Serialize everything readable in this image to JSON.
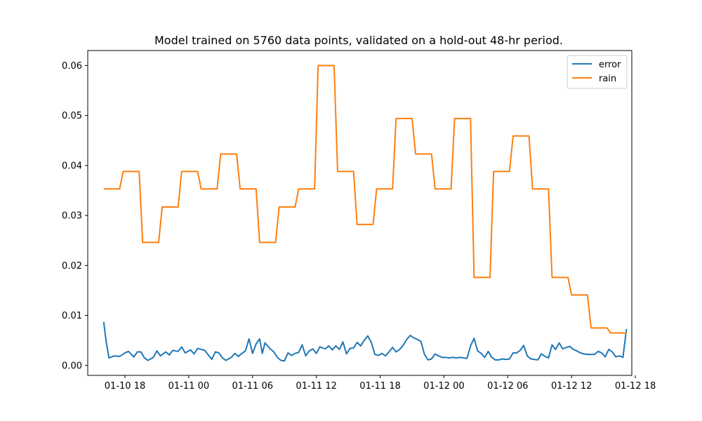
{
  "chart_data": {
    "type": "line",
    "title": "Model trained on 5760 data points, validated on a hold-out 48-hr period.",
    "xlabel": "",
    "ylabel": "",
    "xlim": [
      "2025-01-10 14:30",
      "2025-01-12 17:40"
    ],
    "ylim": [
      -0.002,
      0.063
    ],
    "x_ticks": [
      "01-10 18",
      "01-11 00",
      "01-11 06",
      "01-11 12",
      "01-11 18",
      "01-12 00",
      "01-12 06",
      "01-12 12",
      "01-12 18"
    ],
    "y_ticks": [
      "0.00",
      "0.01",
      "0.02",
      "0.03",
      "0.04",
      "0.05",
      "0.06"
    ],
    "grid": false,
    "legend_position": "top-right",
    "series": [
      {
        "name": "error",
        "color": "#1f77b4",
        "points": [
          [
            "01-10 16:00",
            0.0087
          ],
          [
            "01-10 16:15",
            0.0045
          ],
          [
            "01-10 16:30",
            0.0015
          ],
          [
            "01-10 17:00",
            0.0019
          ],
          [
            "01-10 17:30",
            0.0018
          ],
          [
            "01-10 18:00",
            0.0025
          ],
          [
            "01-10 18:20",
            0.0028
          ],
          [
            "01-10 18:50",
            0.0017
          ],
          [
            "01-10 19:10",
            0.0027
          ],
          [
            "01-10 19:30",
            0.0027
          ],
          [
            "01-10 19:50",
            0.0015
          ],
          [
            "01-10 20:10",
            0.001
          ],
          [
            "01-10 20:40",
            0.0016
          ],
          [
            "01-10 21:00",
            0.0029
          ],
          [
            "01-10 21:20",
            0.0019
          ],
          [
            "01-10 21:50",
            0.0027
          ],
          [
            "01-10 22:10",
            0.0021
          ],
          [
            "01-10 22:30",
            0.003
          ],
          [
            "01-10 23:00",
            0.0028
          ],
          [
            "01-10 23:20",
            0.0037
          ],
          [
            "01-10 23:40",
            0.0025
          ],
          [
            "01-11 00:10",
            0.0031
          ],
          [
            "01-11 00:30",
            0.0023
          ],
          [
            "01-11 00:50",
            0.0034
          ],
          [
            "01-11 01:10",
            0.0032
          ],
          [
            "01-11 01:30",
            0.003
          ],
          [
            "01-11 01:50",
            0.0021
          ],
          [
            "01-11 02:10",
            0.0012
          ],
          [
            "01-11 02:30",
            0.0027
          ],
          [
            "01-11 02:50",
            0.0025
          ],
          [
            "01-11 03:10",
            0.0015
          ],
          [
            "01-11 03:30",
            0.001
          ],
          [
            "01-11 04:00",
            0.0016
          ],
          [
            "01-11 04:20",
            0.0024
          ],
          [
            "01-11 04:40",
            0.0018
          ],
          [
            "01-11 05:00",
            0.0024
          ],
          [
            "01-11 05:20",
            0.0029
          ],
          [
            "01-11 05:40",
            0.0053
          ],
          [
            "01-11 06:00",
            0.0024
          ],
          [
            "01-11 06:20",
            0.0043
          ],
          [
            "01-11 06:40",
            0.0053
          ],
          [
            "01-11 06:55",
            0.0024
          ],
          [
            "01-11 07:10",
            0.0045
          ],
          [
            "01-11 07:40",
            0.0033
          ],
          [
            "01-11 08:00",
            0.0027
          ],
          [
            "01-11 08:20",
            0.0016
          ],
          [
            "01-11 08:40",
            0.001
          ],
          [
            "01-11 09:00",
            0.0009
          ],
          [
            "01-11 09:20",
            0.0025
          ],
          [
            "01-11 09:40",
            0.002
          ],
          [
            "01-11 10:00",
            0.0024
          ],
          [
            "01-11 10:20",
            0.0026
          ],
          [
            "01-11 10:40",
            0.0041
          ],
          [
            "01-11 11:00",
            0.0019
          ],
          [
            "01-11 11:20",
            0.0029
          ],
          [
            "01-11 11:40",
            0.0033
          ],
          [
            "01-11 12:00",
            0.0024
          ],
          [
            "01-11 12:20",
            0.0037
          ],
          [
            "01-11 12:50",
            0.0033
          ],
          [
            "01-11 13:10",
            0.0039
          ],
          [
            "01-11 13:30",
            0.0031
          ],
          [
            "01-11 13:50",
            0.0039
          ],
          [
            "01-11 14:10",
            0.0032
          ],
          [
            "01-11 14:30",
            0.0047
          ],
          [
            "01-11 14:50",
            0.0023
          ],
          [
            "01-11 15:10",
            0.0034
          ],
          [
            "01-11 15:30",
            0.0035
          ],
          [
            "01-11 15:50",
            0.0046
          ],
          [
            "01-11 16:10",
            0.0039
          ],
          [
            "01-11 16:30",
            0.005
          ],
          [
            "01-11 16:50",
            0.0059
          ],
          [
            "01-11 17:10",
            0.0046
          ],
          [
            "01-11 17:30",
            0.0022
          ],
          [
            "01-11 17:50",
            0.002
          ],
          [
            "01-11 18:10",
            0.0024
          ],
          [
            "01-11 18:30",
            0.0019
          ],
          [
            "01-11 18:50",
            0.0027
          ],
          [
            "01-11 19:10",
            0.0036
          ],
          [
            "01-11 19:30",
            0.0027
          ],
          [
            "01-11 19:50",
            0.0032
          ],
          [
            "01-11 20:10",
            0.004
          ],
          [
            "01-11 20:30",
            0.0052
          ],
          [
            "01-11 20:50",
            0.006
          ],
          [
            "01-11 21:10",
            0.0055
          ],
          [
            "01-11 21:30",
            0.0052
          ],
          [
            "01-11 21:50",
            0.0048
          ],
          [
            "01-11 22:10",
            0.0022
          ],
          [
            "01-11 22:30",
            0.0011
          ],
          [
            "01-11 22:50",
            0.0013
          ],
          [
            "01-11 23:10",
            0.0023
          ],
          [
            "01-11 23:30",
            0.0019
          ],
          [
            "01-11 23:50",
            0.0016
          ],
          [
            "01-12 00:10",
            0.0016
          ],
          [
            "01-12 00:30",
            0.0015
          ],
          [
            "01-12 00:50",
            0.0016
          ],
          [
            "01-12 01:10",
            0.0015
          ],
          [
            "01-12 01:30",
            0.0016
          ],
          [
            "01-12 01:50",
            0.0015
          ],
          [
            "01-12 02:10",
            0.0014
          ],
          [
            "01-12 02:30",
            0.0039
          ],
          [
            "01-12 02:50",
            0.0054
          ],
          [
            "01-12 03:10",
            0.0029
          ],
          [
            "01-12 03:30",
            0.0024
          ],
          [
            "01-12 03:50",
            0.0016
          ],
          [
            "01-12 04:10",
            0.0028
          ],
          [
            "01-12 04:30",
            0.0016
          ],
          [
            "01-12 04:50",
            0.0011
          ],
          [
            "01-12 05:10",
            0.0011
          ],
          [
            "01-12 05:30",
            0.0013
          ],
          [
            "01-12 05:50",
            0.0012
          ],
          [
            "01-12 06:10",
            0.0013
          ],
          [
            "01-12 06:30",
            0.0025
          ],
          [
            "01-12 06:50",
            0.0025
          ],
          [
            "01-12 07:10",
            0.003
          ],
          [
            "01-12 07:30",
            0.004
          ],
          [
            "01-12 07:50",
            0.0019
          ],
          [
            "01-12 08:10",
            0.0013
          ],
          [
            "01-12 08:30",
            0.0012
          ],
          [
            "01-12 08:50",
            0.0011
          ],
          [
            "01-12 09:10",
            0.0023
          ],
          [
            "01-12 09:30",
            0.0018
          ],
          [
            "01-12 09:50",
            0.0015
          ],
          [
            "01-12 10:10",
            0.0041
          ],
          [
            "01-12 10:30",
            0.0032
          ],
          [
            "01-12 10:50",
            0.0045
          ],
          [
            "01-12 11:10",
            0.0033
          ],
          [
            "01-12 11:30",
            0.0036
          ],
          [
            "01-12 11:50",
            0.0038
          ],
          [
            "01-12 12:10",
            0.0032
          ],
          [
            "01-12 12:30",
            0.0029
          ],
          [
            "01-12 12:50",
            0.0025
          ],
          [
            "01-12 13:10",
            0.0023
          ],
          [
            "01-12 13:30",
            0.0022
          ],
          [
            "01-12 13:50",
            0.0022
          ],
          [
            "01-12 14:10",
            0.0022
          ],
          [
            "01-12 14:30",
            0.0028
          ],
          [
            "01-12 14:50",
            0.0025
          ],
          [
            "01-12 15:10",
            0.0017
          ],
          [
            "01-12 15:30",
            0.0032
          ],
          [
            "01-12 15:50",
            0.0027
          ],
          [
            "01-12 16:10",
            0.0017
          ],
          [
            "01-12 16:30",
            0.0019
          ],
          [
            "01-12 16:50",
            0.0016
          ],
          [
            "01-12 17:10",
            0.0073
          ]
        ]
      },
      {
        "name": "rain",
        "color": "#ff7f0e",
        "points": [
          [
            "01-10 16:00",
            0.0353
          ],
          [
            "01-10 17:30",
            0.0353
          ],
          [
            "01-10 17:50",
            0.0388
          ],
          [
            "01-10 19:20",
            0.0388
          ],
          [
            "01-10 19:40",
            0.0246
          ],
          [
            "01-10 21:10",
            0.0246
          ],
          [
            "01-10 21:30",
            0.0317
          ],
          [
            "01-10 23:00",
            0.0317
          ],
          [
            "01-10 23:20",
            0.0388
          ],
          [
            "01-11 00:50",
            0.0388
          ],
          [
            "01-11 01:10",
            0.0353
          ],
          [
            "01-11 02:40",
            0.0353
          ],
          [
            "01-11 03:00",
            0.0423
          ],
          [
            "01-11 04:30",
            0.0423
          ],
          [
            "01-11 04:50",
            0.0353
          ],
          [
            "01-11 06:20",
            0.0353
          ],
          [
            "01-11 06:40",
            0.0246
          ],
          [
            "01-11 08:10",
            0.0246
          ],
          [
            "01-11 08:30",
            0.0317
          ],
          [
            "01-11 10:00",
            0.0317
          ],
          [
            "01-11 10:20",
            0.0353
          ],
          [
            "01-11 11:50",
            0.0353
          ],
          [
            "01-11 12:10",
            0.06
          ],
          [
            "01-11 13:40",
            0.06
          ],
          [
            "01-11 14:00",
            0.0388
          ],
          [
            "01-11 15:30",
            0.0388
          ],
          [
            "01-11 15:50",
            0.0282
          ],
          [
            "01-11 17:20",
            0.0282
          ],
          [
            "01-11 17:40",
            0.0353
          ],
          [
            "01-11 19:10",
            0.0353
          ],
          [
            "01-11 19:30",
            0.0494
          ],
          [
            "01-11 21:00",
            0.0494
          ],
          [
            "01-11 21:20",
            0.0423
          ],
          [
            "01-11 22:50",
            0.0423
          ],
          [
            "01-11 23:10",
            0.0353
          ],
          [
            "01-12 00:40",
            0.0353
          ],
          [
            "01-12 01:00",
            0.0494
          ],
          [
            "01-12 02:30",
            0.0494
          ],
          [
            "01-12 02:50",
            0.0176
          ],
          [
            "01-12 04:20",
            0.0176
          ],
          [
            "01-12 04:40",
            0.0388
          ],
          [
            "01-12 06:10",
            0.0388
          ],
          [
            "01-12 06:30",
            0.0459
          ],
          [
            "01-12 08:00",
            0.0459
          ],
          [
            "01-12 08:20",
            0.0353
          ],
          [
            "01-12 09:50",
            0.0353
          ],
          [
            "01-12 10:10",
            0.0176
          ],
          [
            "01-12 11:40",
            0.0176
          ],
          [
            "01-12 12:00",
            0.0141
          ],
          [
            "01-12 13:30",
            0.0141
          ],
          [
            "01-12 13:50",
            0.0075
          ],
          [
            "01-12 15:20",
            0.0075
          ],
          [
            "01-12 15:40",
            0.0065
          ],
          [
            "01-12 17:10",
            0.0065
          ]
        ]
      }
    ]
  }
}
